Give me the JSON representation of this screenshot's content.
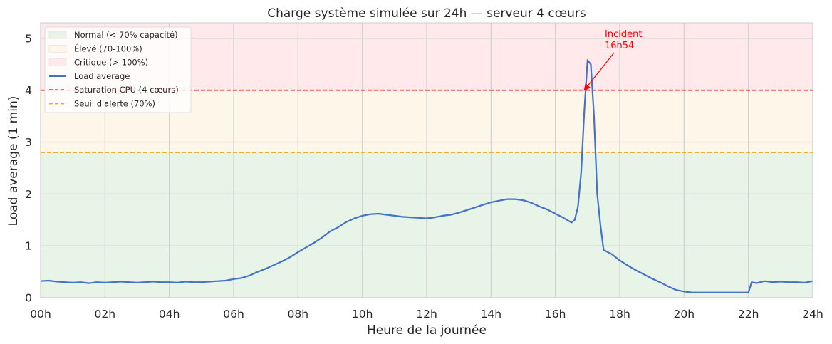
{
  "chart_data": {
    "type": "line",
    "title": "Charge système simulée sur 24h — serveur 4 cœurs",
    "xlabel": "Heure de la journée",
    "ylabel": "Load average (1 min)",
    "xlim": [
      0,
      24
    ],
    "ylim": [
      0,
      5.3
    ],
    "grid": true,
    "legend_position": "top-left",
    "x_ticks": [
      {
        "value": 0,
        "label": "00h"
      },
      {
        "value": 2,
        "label": "02h"
      },
      {
        "value": 4,
        "label": "04h"
      },
      {
        "value": 6,
        "label": "06h"
      },
      {
        "value": 8,
        "label": "08h"
      },
      {
        "value": 10,
        "label": "10h"
      },
      {
        "value": 12,
        "label": "12h"
      },
      {
        "value": 14,
        "label": "14h"
      },
      {
        "value": 16,
        "label": "16h"
      },
      {
        "value": 18,
        "label": "18h"
      },
      {
        "value": 20,
        "label": "20h"
      },
      {
        "value": 22,
        "label": "22h"
      },
      {
        "value": 24,
        "label": "24h"
      }
    ],
    "y_ticks": [
      {
        "value": 0,
        "label": "0"
      },
      {
        "value": 1,
        "label": "1"
      },
      {
        "value": 2,
        "label": "2"
      },
      {
        "value": 3,
        "label": "3"
      },
      {
        "value": 4,
        "label": "4"
      },
      {
        "value": 5,
        "label": "5"
      }
    ],
    "bands": [
      {
        "name": "Normal (< 70% capacité)",
        "from": 0,
        "to": 2.8,
        "color": "#e8f4e8"
      },
      {
        "name": "Élevé (70-100%)",
        "from": 2.8,
        "to": 4,
        "color": "#fff6ea"
      },
      {
        "name": "Critique (> 100%)",
        "from": 4,
        "to": 5.3,
        "color": "#ffe9ea"
      }
    ],
    "thresholds": [
      {
        "name": "Saturation CPU (4 cœurs)",
        "value": 4,
        "color": "#ff0000",
        "dash": "dashed"
      },
      {
        "name": "Seuil d'alerte (70%)",
        "value": 2.8,
        "color": "#f2a71b",
        "dash": "dashed"
      }
    ],
    "series": [
      {
        "name": "Load average",
        "color": "#4472c4",
        "x": [
          0,
          0.25,
          0.5,
          0.75,
          1,
          1.25,
          1.5,
          1.75,
          2,
          2.25,
          2.5,
          2.75,
          3,
          3.25,
          3.5,
          3.75,
          4,
          4.25,
          4.5,
          4.75,
          5,
          5.25,
          5.5,
          5.75,
          6,
          6.25,
          6.5,
          6.75,
          7,
          7.25,
          7.5,
          7.75,
          8,
          8.25,
          8.5,
          8.75,
          9,
          9.25,
          9.5,
          9.75,
          10,
          10.25,
          10.5,
          10.75,
          11,
          11.25,
          11.5,
          11.75,
          12,
          12.25,
          12.5,
          12.75,
          13,
          13.25,
          13.5,
          13.75,
          14,
          14.25,
          14.5,
          14.75,
          15,
          15.25,
          15.5,
          15.75,
          16,
          16.25,
          16.5,
          16.6,
          16.7,
          16.8,
          16.9,
          17,
          17.1,
          17.2,
          17.3,
          17.4,
          17.5,
          17.75,
          18,
          18.25,
          18.5,
          18.75,
          19,
          19.25,
          19.5,
          19.75,
          20,
          20.25,
          20.5,
          21,
          21.5,
          22,
          22.1,
          22.25,
          22.5,
          22.75,
          23,
          23.25,
          23.5,
          23.75,
          24
        ],
        "y": [
          0.32,
          0.33,
          0.31,
          0.3,
          0.29,
          0.3,
          0.28,
          0.3,
          0.29,
          0.3,
          0.31,
          0.3,
          0.29,
          0.3,
          0.31,
          0.3,
          0.3,
          0.29,
          0.31,
          0.3,
          0.3,
          0.31,
          0.32,
          0.33,
          0.36,
          0.38,
          0.43,
          0.5,
          0.56,
          0.63,
          0.7,
          0.78,
          0.88,
          0.97,
          1.06,
          1.16,
          1.28,
          1.36,
          1.46,
          1.53,
          1.58,
          1.61,
          1.62,
          1.6,
          1.58,
          1.56,
          1.55,
          1.54,
          1.53,
          1.55,
          1.58,
          1.6,
          1.64,
          1.69,
          1.74,
          1.79,
          1.84,
          1.87,
          1.9,
          1.9,
          1.88,
          1.83,
          1.76,
          1.7,
          1.62,
          1.54,
          1.45,
          1.5,
          1.75,
          2.4,
          3.6,
          4.58,
          4.5,
          3.5,
          2.0,
          1.4,
          0.92,
          0.84,
          0.72,
          0.62,
          0.53,
          0.45,
          0.37,
          0.3,
          0.22,
          0.15,
          0.12,
          0.1,
          0.1,
          0.1,
          0.1,
          0.1,
          0.3,
          0.28,
          0.32,
          0.3,
          0.31,
          0.3,
          0.3,
          0.29,
          0.32
        ]
      }
    ],
    "annotation": {
      "text_lines": [
        "Incident",
        "16h54"
      ],
      "x": 16.9,
      "y": 4.0,
      "color": "#ff0000"
    }
  }
}
